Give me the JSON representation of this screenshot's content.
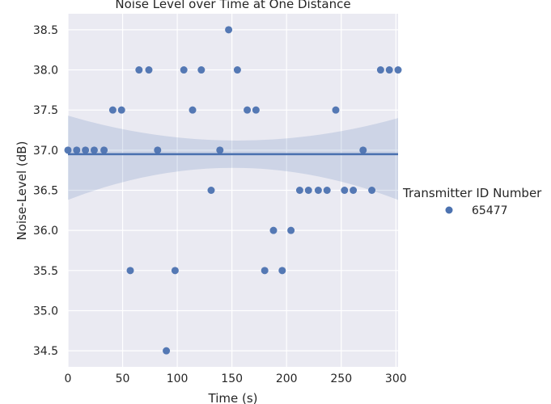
{
  "chart_data": {
    "type": "scatter",
    "title": "Noise Level over Time at One Distance",
    "xlabel": "Time (s)",
    "ylabel": "Noise-Level (dB)",
    "xlim": [
      0,
      302
    ],
    "ylim": [
      34.3,
      38.7
    ],
    "xticks": [
      0,
      50,
      100,
      150,
      200,
      250,
      300
    ],
    "yticks": [
      34.5,
      35.0,
      35.5,
      36.0,
      36.5,
      37.0,
      37.5,
      38.0,
      38.5
    ],
    "xtick_labels": [
      "0",
      "50",
      "100",
      "150",
      "200",
      "250",
      "300"
    ],
    "ytick_labels": [
      "34.5",
      "35.0",
      "35.5",
      "36.0",
      "36.5",
      "37.0",
      "37.5",
      "38.0",
      "38.5"
    ],
    "grid": true,
    "legend": {
      "title": "Transmitter ID Number",
      "position": "right"
    },
    "series": [
      {
        "name": "65477",
        "color": "#4c72b0",
        "x": [
          0,
          8,
          16,
          24,
          33,
          41,
          49,
          57,
          65,
          74,
          82,
          90,
          98,
          106,
          114,
          122,
          131,
          139,
          147,
          155,
          164,
          172,
          180,
          188,
          196,
          204,
          212,
          220,
          229,
          237,
          245,
          253,
          261,
          270,
          278,
          286,
          294,
          302
        ],
        "y": [
          37.0,
          37.0,
          37.0,
          37.0,
          37.0,
          37.5,
          37.5,
          35.5,
          38.0,
          38.0,
          37.0,
          34.5,
          35.5,
          38.0,
          37.5,
          38.0,
          36.5,
          37.0,
          38.5,
          38.0,
          37.5,
          37.5,
          35.5,
          36.0,
          35.5,
          36.0,
          36.5,
          36.5,
          36.5,
          36.5,
          37.5,
          36.5,
          36.5,
          37.0,
          36.5,
          38.0,
          38.0,
          38.0
        ]
      }
    ],
    "regression": {
      "x": [
        0,
        302
      ],
      "y": [
        36.95,
        36.95
      ],
      "ci_lower_at_ends": [
        36.38,
        36.38
      ],
      "ci_lower_at_center": 36.78,
      "ci_upper_at_ends": [
        37.43,
        37.4
      ],
      "ci_upper_at_center": 37.12,
      "color": "#4c72b0"
    },
    "colors": {
      "plot_background": "#eaeaf2",
      "grid": "#ffffff",
      "marker": "#4c72b0"
    }
  }
}
